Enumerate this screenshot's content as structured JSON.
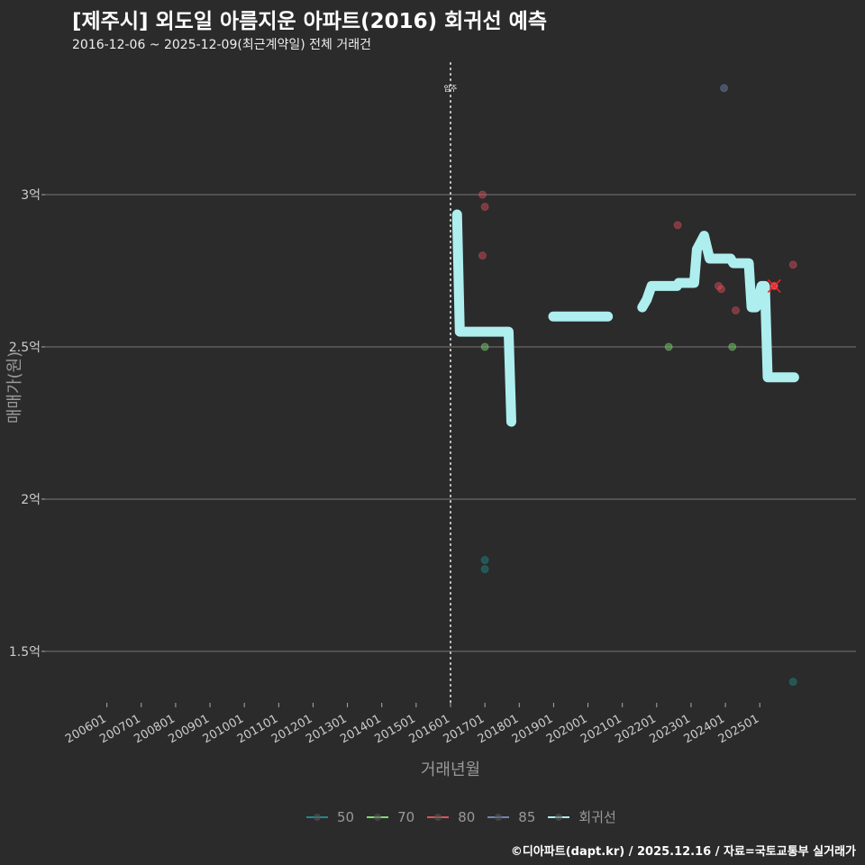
{
  "title": "[제주시] 외도일 아름지운 아파트(2016) 회귀선 예측",
  "subtitle": "2016-12-06 ~ 2025-12-09(최근계약일) 전체 거래건",
  "caption": "©디아파트(dapt.kr) / 2025.12.16 / 자료=국토교통부 실거래가",
  "chart_data": {
    "type": "scatter",
    "xlabel": "거래년월",
    "ylabel": "매매가(원)",
    "xlim": [
      2004.2,
      2027.8
    ],
    "ylim": [
      1.331,
      3.447
    ],
    "x_ticks": [
      "200601",
      "200701",
      "200801",
      "200901",
      "201001",
      "201101",
      "201201",
      "201301",
      "201401",
      "201501",
      "201601",
      "201701",
      "201801",
      "201901",
      "202001",
      "202101",
      "202201",
      "202301",
      "202401",
      "202501"
    ],
    "y_ticks": [
      {
        "v": 3,
        "label": "3억"
      },
      {
        "v": 2.5,
        "label": "2.5억"
      },
      {
        "v": 2,
        "label": "2억"
      },
      {
        "v": 1.5,
        "label": "1.5억"
      }
    ],
    "annotation": {
      "x": 2016.0,
      "label": "입주"
    },
    "series_colors": {
      "50": "#1f8a8a",
      "70": "#7fdc6e",
      "80": "#e0505a",
      "85": "#6f86b0",
      "회귀선": "#aeeeee"
    },
    "legend": [
      "50",
      "70",
      "80",
      "85",
      "회귀선"
    ],
    "legend_placement": "bottom",
    "points": [
      {
        "size": "80",
        "x": 2016.93,
        "y": 3.0
      },
      {
        "size": "80",
        "x": 2017.0,
        "y": 2.96
      },
      {
        "size": "80",
        "x": 2016.93,
        "y": 2.8
      },
      {
        "size": "70",
        "x": 2017.0,
        "y": 2.5
      },
      {
        "size": "50",
        "x": 2017.0,
        "y": 1.8
      },
      {
        "size": "50",
        "x": 2017.0,
        "y": 1.77
      },
      {
        "size": "85",
        "x": 2023.96,
        "y": 3.35
      },
      {
        "size": "80",
        "x": 2022.61,
        "y": 2.9
      },
      {
        "size": "70",
        "x": 2022.35,
        "y": 2.5
      },
      {
        "size": "70",
        "x": 2024.2,
        "y": 2.5
      },
      {
        "size": "80",
        "x": 2023.8,
        "y": 2.7
      },
      {
        "size": "80",
        "x": 2023.88,
        "y": 2.69
      },
      {
        "size": "80",
        "x": 2024.3,
        "y": 2.62
      },
      {
        "size": "80",
        "x": 2025.42,
        "y": 2.7,
        "highlight": true
      },
      {
        "size": "80",
        "x": 2025.97,
        "y": 2.77
      },
      {
        "size": "50",
        "x": 2025.97,
        "y": 1.4
      }
    ],
    "regression": [
      [
        [
          2016.19,
          2.935
        ],
        [
          2016.27,
          2.55
        ],
        [
          2017.69,
          2.55
        ],
        [
          2017.77,
          2.254
        ]
      ],
      [
        [
          2018.99,
          2.6
        ],
        [
          2020.58,
          2.6
        ]
      ],
      [
        [
          2021.58,
          2.63
        ],
        [
          2021.71,
          2.655
        ],
        [
          2021.85,
          2.7
        ],
        [
          2022.59,
          2.7
        ],
        [
          2022.64,
          2.71
        ],
        [
          2023.09,
          2.71
        ],
        [
          2023.17,
          2.82
        ],
        [
          2023.38,
          2.865
        ],
        [
          2023.54,
          2.79
        ],
        [
          2024.15,
          2.79
        ],
        [
          2024.23,
          2.775
        ],
        [
          2024.68,
          2.775
        ],
        [
          2024.76,
          2.63
        ],
        [
          2024.89,
          2.63
        ],
        [
          2025.05,
          2.7
        ],
        [
          2025.15,
          2.7
        ],
        [
          2025.23,
          2.4
        ],
        [
          2026.0,
          2.4
        ]
      ]
    ]
  }
}
